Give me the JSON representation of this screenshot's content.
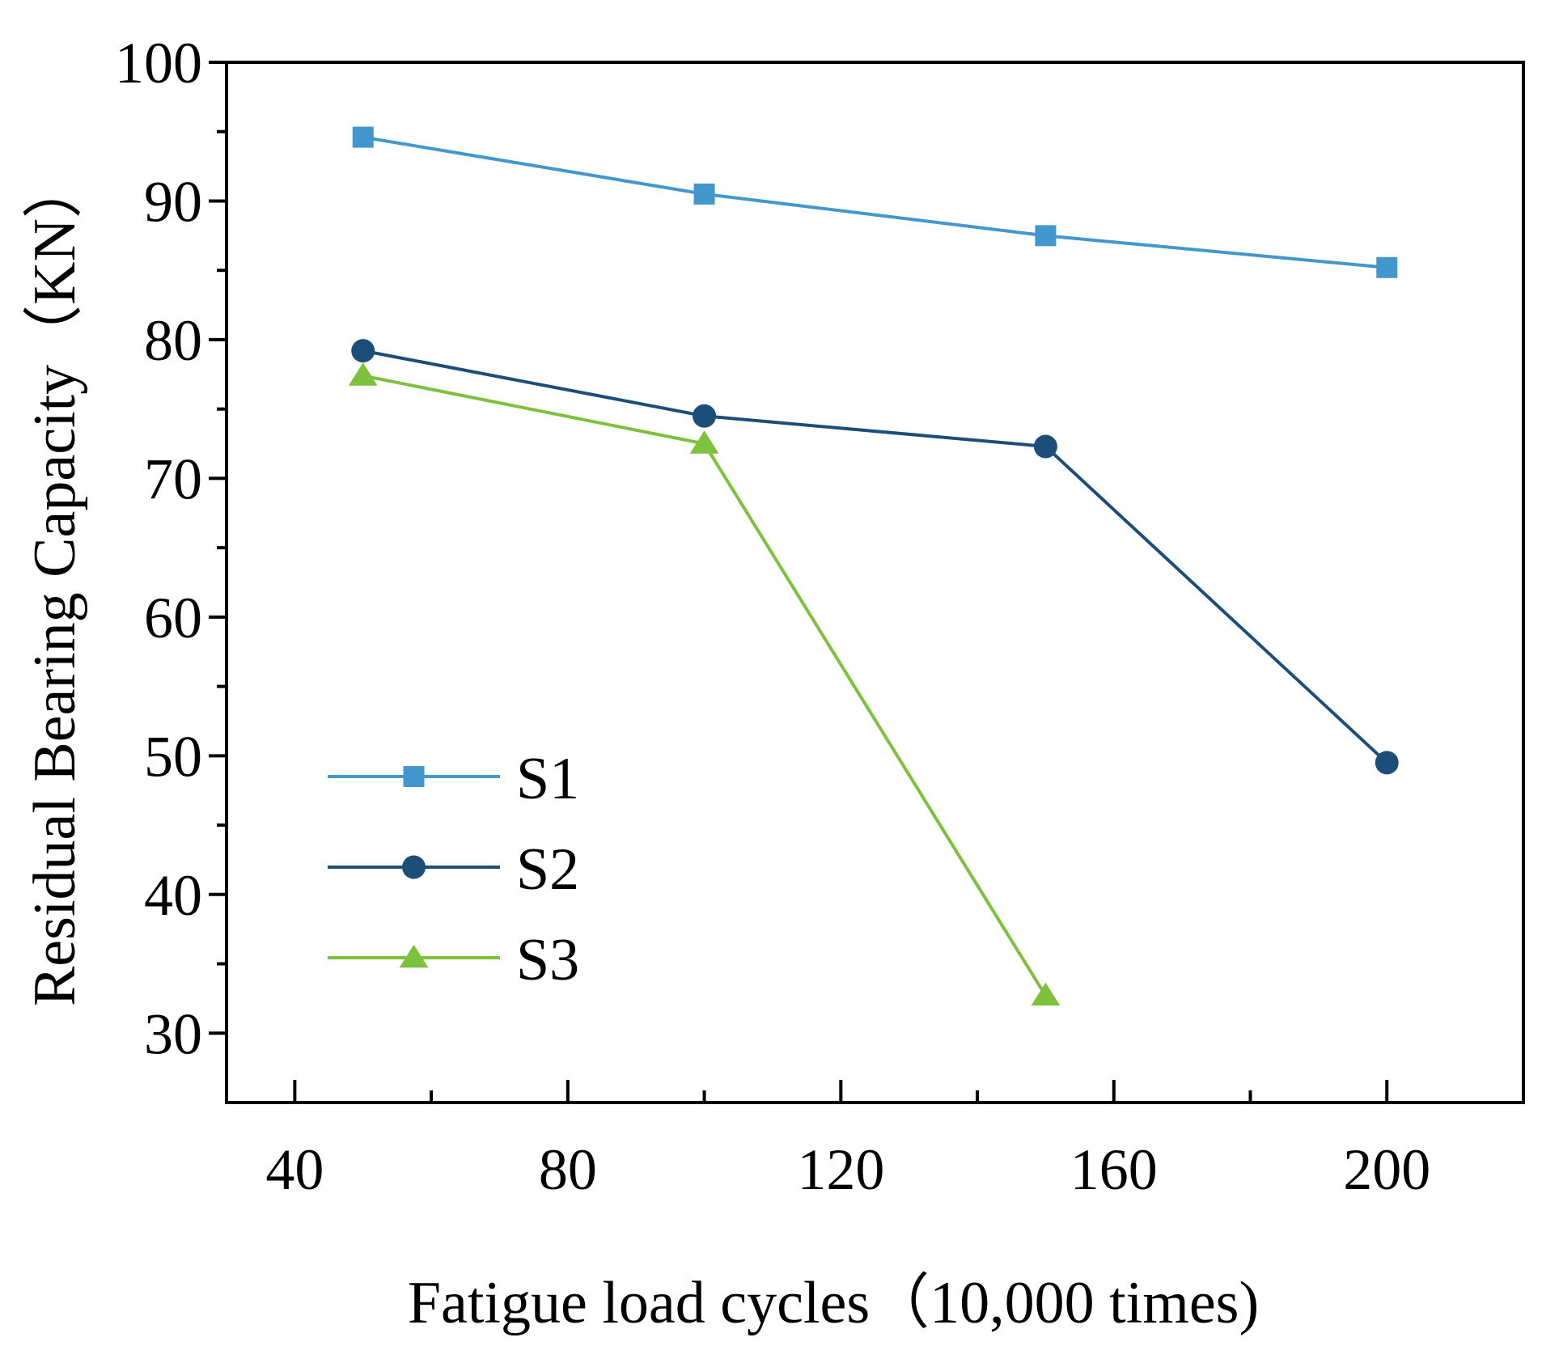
{
  "chart_data": {
    "type": "line",
    "title": "",
    "xlabel": "Fatigue load cycles（10,000 times)",
    "ylabel": "Residual Bearing Capacity（KN）",
    "xlim": [
      30,
      220
    ],
    "ylim": [
      25,
      100
    ],
    "x_ticks": [
      40,
      80,
      120,
      160,
      200
    ],
    "x_tick_labels": [
      "40",
      "80",
      "120",
      "160",
      "200"
    ],
    "y_ticks": [
      30,
      40,
      50,
      60,
      70,
      80,
      90,
      100
    ],
    "y_tick_labels": [
      "30",
      "40",
      "50",
      "60",
      "70",
      "80",
      "90",
      "100"
    ],
    "grid": false,
    "legend_position": "lower-left",
    "series": [
      {
        "name": "S1",
        "marker": "square",
        "color": "#4297CC",
        "x": [
          50,
          100,
          150,
          200
        ],
        "y": [
          94.6,
          90.5,
          87.5,
          85.2
        ]
      },
      {
        "name": "S2",
        "marker": "circle",
        "color": "#1B4F7A",
        "x": [
          50,
          100,
          150,
          200
        ],
        "y": [
          79.2,
          74.5,
          72.3,
          49.5
        ]
      },
      {
        "name": "S3",
        "marker": "triangle",
        "color": "#7DC13C",
        "x": [
          50,
          100,
          150
        ],
        "y": [
          77.4,
          72.5,
          32.7
        ]
      }
    ]
  }
}
